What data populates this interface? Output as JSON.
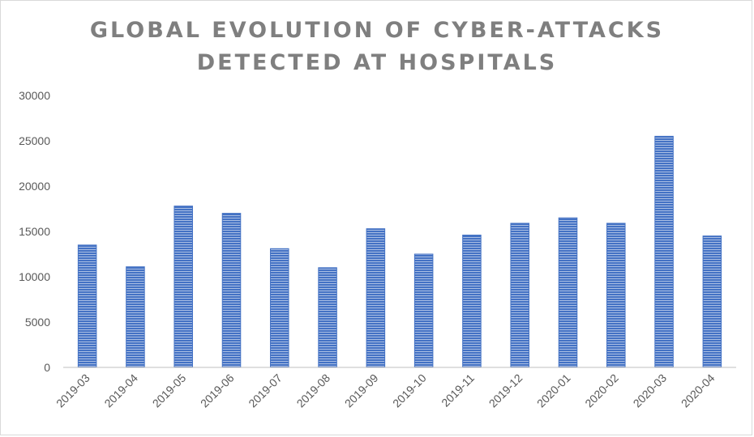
{
  "chart_data": {
    "type": "bar",
    "title_lines": [
      "GLOBAL EVOLUTION OF CYBER-ATTACKS",
      "DETECTED AT HOSPITALS"
    ],
    "xlabel": "",
    "ylabel": "",
    "categories": [
      "2019-03",
      "2019-04",
      "2019-05",
      "2019-06",
      "2019-07",
      "2019-08",
      "2019-09",
      "2019-10",
      "2019-11",
      "2019-12",
      "2020-01",
      "2020-02",
      "2020-03",
      "2020-04"
    ],
    "values": [
      13500,
      11100,
      17800,
      17000,
      13100,
      11000,
      15300,
      12500,
      14600,
      15900,
      16500,
      15900,
      25500,
      14500
    ],
    "ylim": [
      0,
      30000
    ],
    "yticks": [
      "0",
      "5000",
      "10000",
      "15000",
      "20000",
      "25000",
      "30000"
    ],
    "grid": false,
    "legend": "none",
    "bar_color": "#4472c4",
    "bar_stripe_color": "#ffffff",
    "axis_color": "#bfbfbf"
  }
}
